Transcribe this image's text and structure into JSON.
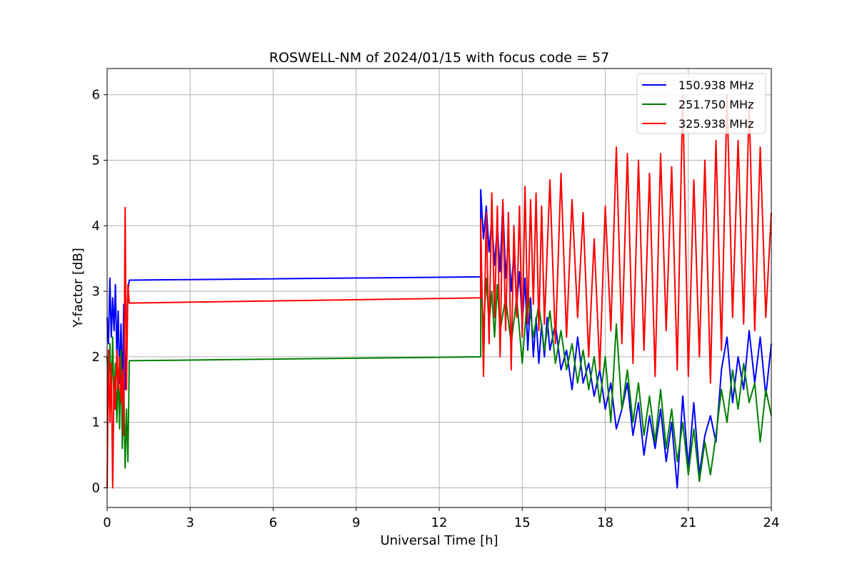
{
  "chart_data": {
    "type": "line",
    "title": "ROSWELL-NM of 2024/01/15 with focus code = 57",
    "xlabel": "Universal Time [h]",
    "ylabel": "Y-factor [dB]",
    "xlim": [
      0,
      24
    ],
    "ylim": [
      -0.3,
      6.4
    ],
    "xticks": [
      0,
      3,
      6,
      9,
      12,
      15,
      18,
      21,
      24
    ],
    "yticks": [
      0,
      1,
      2,
      3,
      4,
      5,
      6
    ],
    "grid": true,
    "legend_position": "top-right",
    "series": [
      {
        "name": "150.938 MHz",
        "color": "#0000ff",
        "points": [
          [
            0.0,
            2.6
          ],
          [
            0.05,
            2.2
          ],
          [
            0.1,
            3.2
          ],
          [
            0.15,
            2.3
          ],
          [
            0.2,
            2.9
          ],
          [
            0.25,
            2.4
          ],
          [
            0.3,
            3.1
          ],
          [
            0.35,
            2.0
          ],
          [
            0.4,
            2.7
          ],
          [
            0.45,
            1.6
          ],
          [
            0.5,
            2.5
          ],
          [
            0.55,
            1.4
          ],
          [
            0.6,
            2.8
          ],
          [
            0.65,
            1.5
          ],
          [
            0.7,
            2.2
          ],
          [
            0.75,
            3.0
          ],
          [
            0.8,
            3.17
          ],
          [
            13.5,
            3.22
          ],
          [
            13.5,
            4.55
          ],
          [
            13.6,
            3.8
          ],
          [
            13.7,
            4.3
          ],
          [
            13.8,
            3.6
          ],
          [
            13.9,
            4.1
          ],
          [
            14.0,
            3.4
          ],
          [
            14.1,
            4.0
          ],
          [
            14.2,
            3.3
          ],
          [
            14.3,
            4.35
          ],
          [
            14.4,
            3.2
          ],
          [
            14.5,
            3.8
          ],
          [
            14.6,
            3.0
          ],
          [
            14.7,
            3.6
          ],
          [
            14.8,
            2.8
          ],
          [
            14.9,
            3.3
          ],
          [
            15.0,
            2.5
          ],
          [
            15.1,
            3.2
          ],
          [
            15.2,
            2.1
          ],
          [
            15.3,
            2.9
          ],
          [
            15.4,
            2.0
          ],
          [
            15.5,
            2.6
          ],
          [
            15.6,
            1.9
          ],
          [
            15.7,
            2.5
          ],
          [
            15.8,
            2.0
          ],
          [
            15.9,
            2.6
          ],
          [
            16.0,
            2.1
          ],
          [
            16.2,
            2.5
          ],
          [
            16.4,
            1.8
          ],
          [
            16.6,
            2.1
          ],
          [
            16.8,
            1.5
          ],
          [
            17.0,
            2.3
          ],
          [
            17.2,
            1.6
          ],
          [
            17.4,
            1.9
          ],
          [
            17.6,
            1.4
          ],
          [
            17.8,
            1.8
          ],
          [
            18.0,
            1.2
          ],
          [
            18.2,
            1.6
          ],
          [
            18.4,
            0.9
          ],
          [
            18.6,
            1.2
          ],
          [
            18.8,
            1.6
          ],
          [
            19.0,
            0.8
          ],
          [
            19.2,
            1.3
          ],
          [
            19.4,
            0.5
          ],
          [
            19.6,
            1.1
          ],
          [
            19.8,
            0.6
          ],
          [
            20.0,
            1.2
          ],
          [
            20.2,
            0.4
          ],
          [
            20.4,
            1.0
          ],
          [
            20.6,
            0.0
          ],
          [
            20.8,
            1.4
          ],
          [
            21.0,
            0.3
          ],
          [
            21.2,
            1.3
          ],
          [
            21.4,
            0.2
          ],
          [
            21.6,
            0.8
          ],
          [
            21.8,
            1.1
          ],
          [
            22.0,
            0.7
          ],
          [
            22.2,
            1.8
          ],
          [
            22.4,
            2.3
          ],
          [
            22.6,
            1.3
          ],
          [
            22.8,
            2.0
          ],
          [
            23.0,
            1.5
          ],
          [
            23.2,
            2.4
          ],
          [
            23.4,
            1.6
          ],
          [
            23.6,
            2.3
          ],
          [
            23.8,
            1.4
          ],
          [
            24.0,
            2.2
          ]
        ]
      },
      {
        "name": "251.750 MHz",
        "color": "#008000",
        "points": [
          [
            0.0,
            2.0
          ],
          [
            0.05,
            1.5
          ],
          [
            0.1,
            2.2
          ],
          [
            0.15,
            1.3
          ],
          [
            0.2,
            2.3
          ],
          [
            0.25,
            1.2
          ],
          [
            0.3,
            1.9
          ],
          [
            0.35,
            1.0
          ],
          [
            0.4,
            1.8
          ],
          [
            0.45,
            0.9
          ],
          [
            0.5,
            2.1
          ],
          [
            0.55,
            0.6
          ],
          [
            0.6,
            1.6
          ],
          [
            0.65,
            0.3
          ],
          [
            0.7,
            1.2
          ],
          [
            0.75,
            0.4
          ],
          [
            0.8,
            1.94
          ],
          [
            13.5,
            2.0
          ],
          [
            13.5,
            3.3
          ],
          [
            13.6,
            2.4
          ],
          [
            13.7,
            3.2
          ],
          [
            13.8,
            2.5
          ],
          [
            13.9,
            3.0
          ],
          [
            14.0,
            2.3
          ],
          [
            14.1,
            3.1
          ],
          [
            14.2,
            2.4
          ],
          [
            14.4,
            2.9
          ],
          [
            14.6,
            2.2
          ],
          [
            14.8,
            2.9
          ],
          [
            15.0,
            1.9
          ],
          [
            15.2,
            3.0
          ],
          [
            15.4,
            2.3
          ],
          [
            15.6,
            2.8
          ],
          [
            15.8,
            2.1
          ],
          [
            16.0,
            2.7
          ],
          [
            16.2,
            1.9
          ],
          [
            16.4,
            2.4
          ],
          [
            16.6,
            1.8
          ],
          [
            16.8,
            2.2
          ],
          [
            17.0,
            1.6
          ],
          [
            17.2,
            2.1
          ],
          [
            17.4,
            1.5
          ],
          [
            17.6,
            2.0
          ],
          [
            17.8,
            1.3
          ],
          [
            18.0,
            2.0
          ],
          [
            18.2,
            1.0
          ],
          [
            18.4,
            2.5
          ],
          [
            18.6,
            1.2
          ],
          [
            18.8,
            1.8
          ],
          [
            19.0,
            1.0
          ],
          [
            19.2,
            1.6
          ],
          [
            19.4,
            0.8
          ],
          [
            19.6,
            1.4
          ],
          [
            19.8,
            0.7
          ],
          [
            20.0,
            1.5
          ],
          [
            20.2,
            0.6
          ],
          [
            20.4,
            1.2
          ],
          [
            20.6,
            0.4
          ],
          [
            20.8,
            1.0
          ],
          [
            21.0,
            0.2
          ],
          [
            21.2,
            0.9
          ],
          [
            21.4,
            0.1
          ],
          [
            21.6,
            0.7
          ],
          [
            21.8,
            0.2
          ],
          [
            22.0,
            0.8
          ],
          [
            22.2,
            1.5
          ],
          [
            22.4,
            1.0
          ],
          [
            22.6,
            1.8
          ],
          [
            22.8,
            1.2
          ],
          [
            23.0,
            1.9
          ],
          [
            23.2,
            1.3
          ],
          [
            23.4,
            1.6
          ],
          [
            23.6,
            0.7
          ],
          [
            23.8,
            1.5
          ],
          [
            24.0,
            1.1
          ]
        ]
      },
      {
        "name": "325.938 MHz",
        "color": "#ff0000",
        "points": [
          [
            0.0,
            0.0
          ],
          [
            0.05,
            2.1
          ],
          [
            0.1,
            1.0
          ],
          [
            0.15,
            1.9
          ],
          [
            0.2,
            0.0
          ],
          [
            0.25,
            1.7
          ],
          [
            0.3,
            1.2
          ],
          [
            0.35,
            2.1
          ],
          [
            0.4,
            1.5
          ],
          [
            0.45,
            2.0
          ],
          [
            0.5,
            1.3
          ],
          [
            0.55,
            1.8
          ],
          [
            0.6,
            0.8
          ],
          [
            0.65,
            4.28
          ],
          [
            0.7,
            1.5
          ],
          [
            0.75,
            3.1
          ],
          [
            0.8,
            2.82
          ],
          [
            13.5,
            2.9
          ],
          [
            13.5,
            4.1
          ],
          [
            13.6,
            1.7
          ],
          [
            13.7,
            4.2
          ],
          [
            13.8,
            2.2
          ],
          [
            13.9,
            4.5
          ],
          [
            14.0,
            2.6
          ],
          [
            14.1,
            4.3
          ],
          [
            14.2,
            2.0
          ],
          [
            14.3,
            4.4
          ],
          [
            14.4,
            2.4
          ],
          [
            14.5,
            4.2
          ],
          [
            14.6,
            1.8
          ],
          [
            14.7,
            4.0
          ],
          [
            14.8,
            2.6
          ],
          [
            14.9,
            4.3
          ],
          [
            15.0,
            2.3
          ],
          [
            15.1,
            4.6
          ],
          [
            15.2,
            2.5
          ],
          [
            15.3,
            4.4
          ],
          [
            15.4,
            2.8
          ],
          [
            15.5,
            4.5
          ],
          [
            15.6,
            2.4
          ],
          [
            15.7,
            4.3
          ],
          [
            15.8,
            2.5
          ],
          [
            16.0,
            4.7
          ],
          [
            16.2,
            2.2
          ],
          [
            16.4,
            4.8
          ],
          [
            16.6,
            2.3
          ],
          [
            16.8,
            4.4
          ],
          [
            17.0,
            2.6
          ],
          [
            17.2,
            4.2
          ],
          [
            17.4,
            2.0
          ],
          [
            17.6,
            3.8
          ],
          [
            17.8,
            1.8
          ],
          [
            18.0,
            4.3
          ],
          [
            18.2,
            2.4
          ],
          [
            18.4,
            5.2
          ],
          [
            18.6,
            2.2
          ],
          [
            18.8,
            5.1
          ],
          [
            19.0,
            1.9
          ],
          [
            19.2,
            5.0
          ],
          [
            19.4,
            2.1
          ],
          [
            19.6,
            4.8
          ],
          [
            19.8,
            1.7
          ],
          [
            20.0,
            5.1
          ],
          [
            20.2,
            2.4
          ],
          [
            20.4,
            4.9
          ],
          [
            20.6,
            1.8
          ],
          [
            20.8,
            6.0
          ],
          [
            21.0,
            1.7
          ],
          [
            21.2,
            4.7
          ],
          [
            21.4,
            2.0
          ],
          [
            21.6,
            5.0
          ],
          [
            21.8,
            1.6
          ],
          [
            22.0,
            5.3
          ],
          [
            22.2,
            2.1
          ],
          [
            22.4,
            6.0
          ],
          [
            22.6,
            2.6
          ],
          [
            22.8,
            5.3
          ],
          [
            23.0,
            2.5
          ],
          [
            23.2,
            5.9
          ],
          [
            23.4,
            2.4
          ],
          [
            23.6,
            5.2
          ],
          [
            23.8,
            2.6
          ],
          [
            24.0,
            4.2
          ]
        ]
      }
    ]
  }
}
